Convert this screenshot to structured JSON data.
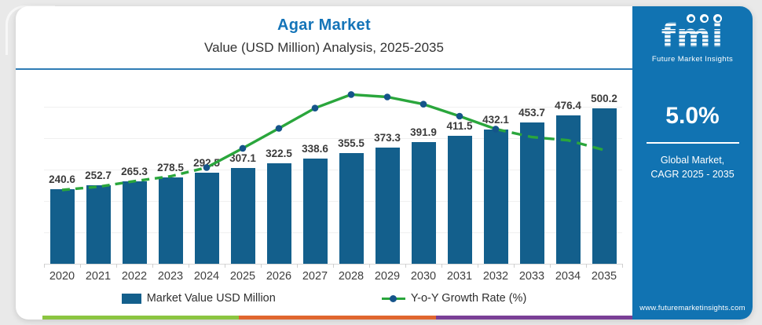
{
  "header": {
    "title": "Agar Market",
    "subtitle": "Value (USD Million) Analysis, 2025-2035"
  },
  "chart_data": {
    "type": "bar",
    "overlay_type": "line",
    "title": "Agar Market",
    "subtitle": "Value (USD Million) Analysis, 2025-2035",
    "categories": [
      "2020",
      "2021",
      "2022",
      "2023",
      "2024",
      "2025",
      "2026",
      "2027",
      "2028",
      "2029",
      "2030",
      "2031",
      "2032",
      "2033",
      "2034",
      "2035"
    ],
    "series": [
      {
        "name": "Market Value USD Million",
        "type": "bar",
        "color": "#135f8c",
        "values": [
          240.6,
          252.7,
          265.3,
          278.5,
          292.5,
          307.1,
          322.5,
          338.6,
          355.5,
          373.3,
          391.9,
          411.5,
          432.1,
          453.7,
          476.4,
          500.2
        ]
      },
      {
        "name": "Y-o-Y Growth Rate (%)",
        "type": "line",
        "color": "#2aa63c",
        "marker_color": "#15548a",
        "note": "line has no numeric labels in image; heights estimated from pixels as percent of plot height",
        "relative_heights_pct": [
          39.5,
          41.2,
          44.2,
          46.8,
          51.5,
          61.8,
          72.5,
          83.3,
          90.6,
          89.3,
          85.4,
          79.0,
          72.1,
          67.8,
          66.1,
          60.9
        ],
        "dashed_before_index": 4,
        "dashed_after_index": 12,
        "marker_indices": [
          4,
          5,
          6,
          7,
          8,
          9,
          10,
          11,
          12
        ]
      }
    ],
    "ylim": [
      0,
      600
    ],
    "xlabel": "",
    "ylabel": "",
    "grid": "faint horizontal gridlines",
    "legend_position": "bottom",
    "value_labels": "above each bar, one decimal"
  },
  "sidebar": {
    "logo_text": "fmi",
    "logo_caption": "Future Market Insights",
    "logo_icons": [
      "person-circle-icon",
      "globe-circle-icon",
      "person-globe-circle-icon"
    ],
    "cagr_value": "5.0%",
    "cagr_label_line1": "Global Market,",
    "cagr_label_line2": "CAGR 2025 - 2035",
    "website": "www.futuremarketinsights.com",
    "bg_color": "#1173b2"
  },
  "footer_strip": {
    "colors": [
      "#8bc540",
      "#e0662e",
      "#7a3f96"
    ]
  },
  "colors": {
    "title_blue": "#1474b8",
    "divider_blue": "#2f7cb5",
    "bar_blue": "#135f8c",
    "line_green": "#2aa63c",
    "marker_blue": "#15548a",
    "page_bg": "#e9e9e9"
  }
}
